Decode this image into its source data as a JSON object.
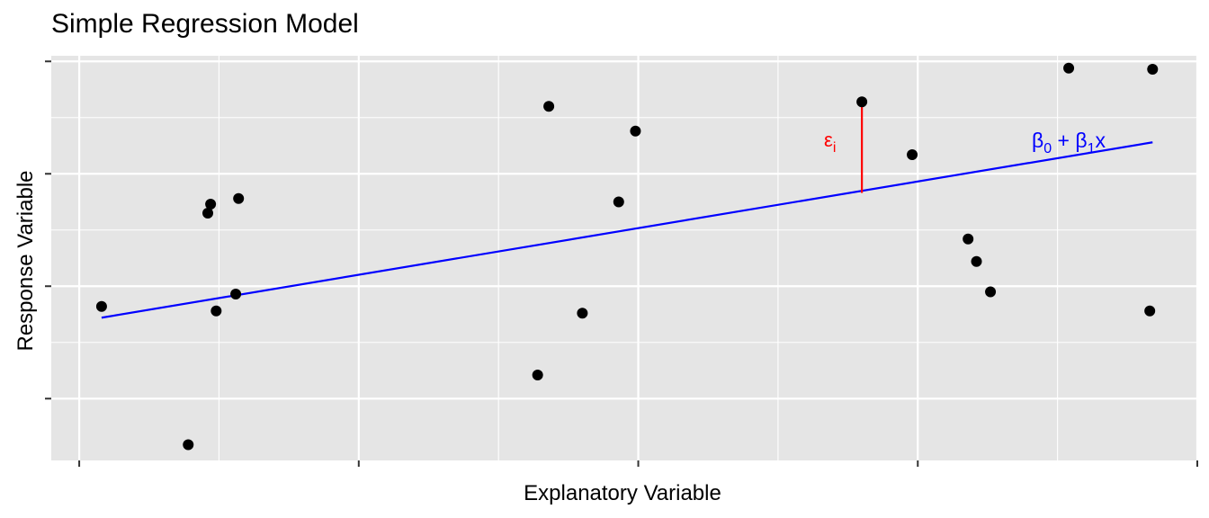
{
  "chart_data": {
    "type": "scatter",
    "title": "Simple Regression Model",
    "xlabel": "Explanatory Variable",
    "ylabel": "Response Variable",
    "xlim": [
      -0.1,
      4.0
    ],
    "ylim": [
      -0.55,
      3.05
    ],
    "x_ticks": [
      0,
      1,
      2,
      3,
      4
    ],
    "x_minor_ticks": [
      0.5,
      1.5,
      2.5,
      3.5
    ],
    "y_ticks": [
      0,
      1,
      2,
      3
    ],
    "y_minor_ticks": [
      0.5,
      1.5,
      2.5
    ],
    "tick_labels_shown": false,
    "grid": true,
    "points": [
      {
        "x": 0.08,
        "y": 0.82
      },
      {
        "x": 0.39,
        "y": -0.41
      },
      {
        "x": 0.46,
        "y": 1.65
      },
      {
        "x": 0.47,
        "y": 1.73
      },
      {
        "x": 0.49,
        "y": 0.78
      },
      {
        "x": 0.56,
        "y": 0.93
      },
      {
        "x": 0.57,
        "y": 1.78
      },
      {
        "x": 1.64,
        "y": 0.21
      },
      {
        "x": 1.68,
        "y": 2.6
      },
      {
        "x": 1.8,
        "y": 0.76
      },
      {
        "x": 1.93,
        "y": 1.75
      },
      {
        "x": 1.99,
        "y": 2.38
      },
      {
        "x": 2.8,
        "y": 2.64
      },
      {
        "x": 2.98,
        "y": 2.17
      },
      {
        "x": 3.18,
        "y": 1.42
      },
      {
        "x": 3.21,
        "y": 1.22
      },
      {
        "x": 3.26,
        "y": 0.95
      },
      {
        "x": 3.54,
        "y": 2.94
      },
      {
        "x": 3.83,
        "y": 0.78
      },
      {
        "x": 3.84,
        "y": 2.93
      }
    ],
    "regression_line": {
      "x": [
        0.08,
        3.84
      ],
      "y": [
        0.72,
        2.28
      ],
      "color": "#0000ff"
    },
    "residual": {
      "x": 2.8,
      "y_point": 2.64,
      "y_fit": 1.83,
      "color": "#ff0000"
    },
    "colors": {
      "panel": "#e5e5e5",
      "grid": "#ffffff",
      "points": "#000000",
      "line": "#0000ff",
      "residual": "#ff0000"
    }
  },
  "annotations": {
    "residual_symbol": "ε",
    "residual_subscript": "i",
    "line_beta0": "β",
    "line_sub0": "0",
    "line_plus": " + ",
    "line_beta1": "β",
    "line_sub1": "1",
    "line_x": "x"
  }
}
